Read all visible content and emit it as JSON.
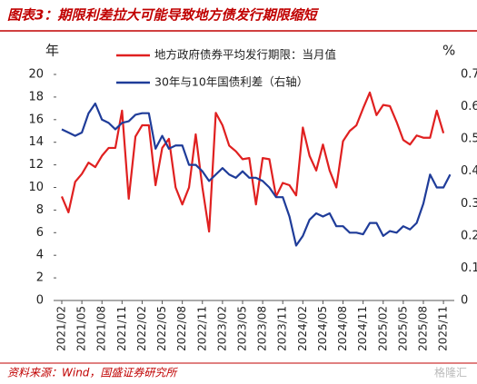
{
  "chart_data": {
    "type": "line",
    "title": "图表3：期限利差拉大可能导致地方债发行期限缩短",
    "y_label": "年",
    "y2_label": "%",
    "source": "资料来源：Wind，国盛证券研究所",
    "watermark": "格隆汇",
    "categories": [
      "2021/02",
      null,
      null,
      "2021/05",
      null,
      null,
      "2021/08",
      null,
      null,
      "2021/11",
      null,
      null,
      "2022/02",
      null,
      null,
      "2022/05",
      null,
      null,
      "2022/08",
      null,
      null,
      "2022/11",
      null,
      null,
      "2023/02",
      null,
      null,
      "2023/05",
      null,
      null,
      "2023/08",
      null,
      null,
      "2023/11",
      null,
      null,
      "2024/02",
      null,
      null,
      "2024/05",
      null,
      null,
      "2024/08",
      null,
      null,
      "2024/11",
      null,
      null,
      "2025/02",
      null,
      null,
      "2025/05",
      null,
      null,
      "2025/08",
      null,
      null,
      "2025/11",
      null
    ],
    "series": [
      {
        "name": "地方政府债券平均发行期限：当月值",
        "color": "#e02020",
        "values": [
          9.2,
          7.8,
          10.5,
          11.2,
          12.2,
          11.8,
          12.8,
          13.5,
          13.5,
          16.8,
          9.0,
          14.5,
          15.5,
          15.5,
          10.2,
          13.5,
          14.3,
          10.0,
          8.5,
          10.0,
          14.7,
          10.0,
          6.1,
          16.6,
          15.5,
          13.7,
          13.2,
          12.5,
          12.6,
          8.5,
          12.6,
          12.5,
          9.2,
          10.4,
          10.2,
          9.3,
          15.3,
          12.8,
          11.5,
          13.8,
          11.5,
          10.0,
          14.1,
          15.0,
          15.5,
          17.0,
          18.4,
          16.4,
          17.3,
          17.2,
          15.8,
          14.2,
          13.8,
          14.6,
          14.4,
          14.4,
          16.8,
          14.8,
          null
        ]
      },
      {
        "name": "30年与10年国债利差（右轴）",
        "color": "#1f3c99",
        "axis": "y2",
        "values": [
          0.53,
          0.52,
          0.51,
          0.52,
          0.58,
          0.61,
          0.56,
          0.55,
          0.53,
          0.55,
          0.555,
          0.575,
          0.58,
          0.58,
          0.47,
          0.51,
          0.47,
          0.48,
          0.48,
          0.42,
          0.42,
          0.4,
          0.37,
          0.39,
          0.41,
          0.39,
          0.38,
          0.4,
          0.38,
          0.38,
          0.37,
          0.35,
          0.32,
          0.32,
          0.26,
          0.17,
          0.2,
          0.25,
          0.27,
          0.26,
          0.27,
          0.23,
          0.23,
          0.21,
          0.21,
          0.205,
          0.24,
          0.24,
          0.2,
          0.215,
          0.21,
          0.23,
          0.22,
          0.24,
          0.3,
          0.39,
          0.35,
          0.35,
          0.39
        ]
      }
    ],
    "ylim": [
      0,
      20
    ],
    "yticks": [
      0,
      2,
      4,
      6,
      8,
      10,
      12,
      14,
      16,
      18,
      20
    ],
    "y2lim": [
      0,
      0.7
    ],
    "y2ticks": [
      0,
      0.1,
      0.2,
      0.3,
      0.4,
      0.5,
      0.6,
      0.7
    ],
    "grid": false
  }
}
